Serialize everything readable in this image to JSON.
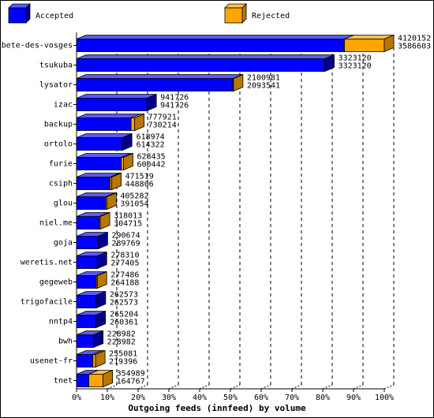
{
  "chart_data": {
    "type": "bar",
    "title": "Outgoing feeds (innfeed) by volume",
    "legend_position": "top",
    "series": [
      {
        "name": "Accepted",
        "color": "#0000ff",
        "values": [
          4120152,
          3323120,
          2100981,
          941726,
          777921,
          618974,
          628435,
          471519,
          405282,
          318013,
          290674,
          278310,
          277486,
          262573,
          265204,
          228982,
          255081,
          354989
        ]
      },
      {
        "name": "Rejected",
        "color": "#ffa500",
        "values": [
          3586603,
          3323120,
          2093541,
          941726,
          730214,
          614322,
          600442,
          448806,
          391054,
          304715,
          289769,
          277405,
          264188,
          262573,
          260361,
          228982,
          219396,
          164767
        ]
      }
    ],
    "categories": [
      "bete-des-vosges",
      "tsukuba",
      "lysator",
      "izac",
      "backup",
      "ortolo",
      "furie",
      "csiph",
      "glou",
      "niel.me",
      "goja",
      "weretis.net",
      "gegeweb",
      "trigofacile",
      "nntp4",
      "bwh",
      "usenet-fr",
      "tnet"
    ],
    "x_ticks": [
      "0%",
      "10%",
      "20%",
      "30%",
      "40%",
      "50%",
      "60%",
      "70%",
      "80%",
      "90%",
      "100%"
    ],
    "xlim": [
      0,
      4120152
    ],
    "grid": true
  }
}
